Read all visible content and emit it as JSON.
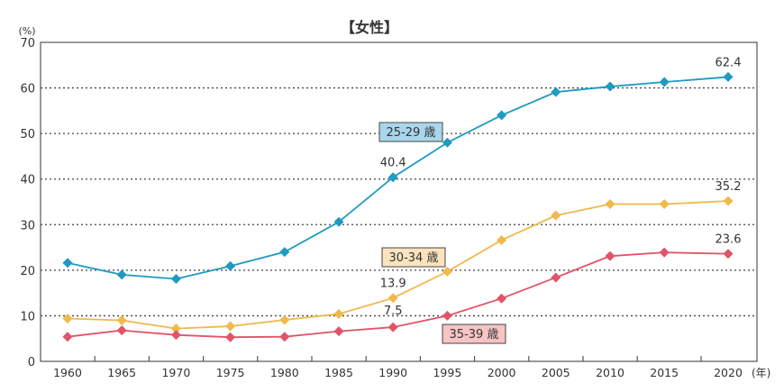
{
  "chart_data": {
    "type": "line",
    "title": "【女性】",
    "ylabel": "(%)",
    "xlabel_unit": "(年)",
    "ylim": [
      0,
      70
    ],
    "yticks": [
      0,
      10,
      20,
      30,
      40,
      50,
      60,
      70
    ],
    "grid": "horizontal dotted",
    "categories": [
      "1960",
      "1965",
      "1970",
      "1975",
      "1980",
      "1985",
      "1990",
      "1995",
      "2000",
      "2005",
      "2010",
      "2015",
      "2020"
    ],
    "series": [
      {
        "name": "25-29 歳",
        "color": "#1f9ac0",
        "label_bg": "#a9d6ec",
        "values": [
          21.6,
          19.0,
          18.1,
          20.9,
          24.0,
          30.6,
          40.4,
          48.0,
          54.0,
          59.1,
          60.3,
          61.3,
          62.4
        ],
        "annotations": {
          "6": "40.4",
          "12": "62.4"
        }
      },
      {
        "name": "30-34 歳",
        "color": "#f0b94a",
        "label_bg": "#fbe3bd",
        "values": [
          9.4,
          9.0,
          7.2,
          7.7,
          9.1,
          10.4,
          13.9,
          19.7,
          26.6,
          32.0,
          34.5,
          34.5,
          35.2
        ],
        "annotations": {
          "6": "13.9",
          "12": "35.2"
        }
      },
      {
        "name": "35-39 歳",
        "color": "#e05468",
        "label_bg": "#f6c4c4",
        "values": [
          5.4,
          6.8,
          5.8,
          5.3,
          5.4,
          6.6,
          7.5,
          10.0,
          13.8,
          18.4,
          23.1,
          23.9,
          23.6
        ],
        "annotations": {
          "6": "7.5",
          "12": "23.6"
        }
      }
    ]
  }
}
